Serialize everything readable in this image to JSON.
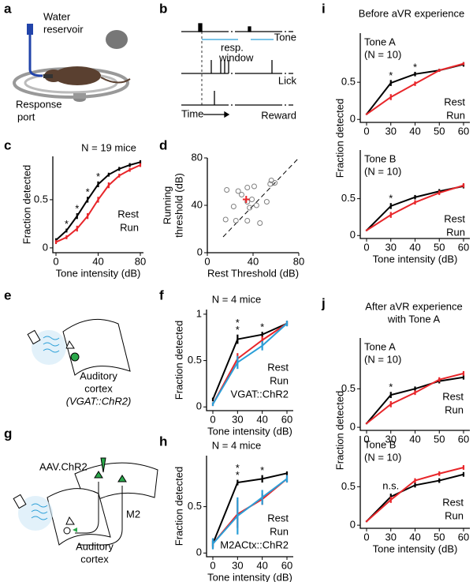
{
  "figure": {
    "panel_labels": [
      "a",
      "b",
      "c",
      "d",
      "e",
      "f",
      "g",
      "h",
      "i",
      "j"
    ],
    "a": {
      "reservoir": [
        "Water",
        "reservoir"
      ],
      "port": [
        "Response",
        "port"
      ]
    },
    "b": {
      "rows": [
        "Tone",
        "Lick",
        "Reward"
      ],
      "window": [
        "resp.",
        "window"
      ],
      "time": "Time"
    },
    "e": {
      "area": [
        "Auditory",
        "cortex"
      ],
      "construct": "(VGAT::ChR2)"
    },
    "g": {
      "virus": "AAV.ChR2",
      "target": "M2",
      "area": [
        "Auditory",
        "cortex"
      ]
    }
  },
  "chart_data": [
    {
      "type": "line",
      "title": "N = 19 mice",
      "xlabel": "Tone intensity (dB)",
      "ylabel": "Fraction detected",
      "x": [
        0,
        10,
        20,
        30,
        40,
        50,
        60,
        70,
        80
      ],
      "xlim": [
        -3,
        83
      ],
      "xticks": [
        0,
        40,
        80
      ],
      "ylim": [
        -0.05,
        0.95
      ],
      "yticks": [
        0,
        0.5
      ],
      "series": [
        {
          "name": "Rest",
          "color": "#000000",
          "values": [
            0.08,
            0.18,
            0.33,
            0.5,
            0.66,
            0.76,
            0.82,
            0.86,
            0.89
          ],
          "errors": [
            0.02,
            0.02,
            0.03,
            0.03,
            0.03,
            0.02,
            0.02,
            0.02,
            0.02
          ]
        },
        {
          "name": "Run",
          "color": "#e8262a",
          "values": [
            0.06,
            0.11,
            0.2,
            0.33,
            0.5,
            0.65,
            0.75,
            0.81,
            0.86
          ],
          "errors": [
            0.02,
            0.02,
            0.03,
            0.03,
            0.03,
            0.03,
            0.02,
            0.02,
            0.02
          ]
        }
      ],
      "annotations": [
        {
          "text": "*",
          "at": 1,
          "color": "#e8262a"
        },
        {
          "text": "*",
          "at": 2,
          "color": "#e8262a"
        },
        {
          "text": "*",
          "at": 3,
          "color": "#e8262a"
        },
        {
          "text": "*",
          "at": 4,
          "color": "#e8262a"
        }
      ]
    },
    {
      "type": "scatter",
      "xlabel": "Rest Threshold (dB)",
      "ylabel": [
        "Running",
        "threshold (dB)"
      ],
      "x": [
        17,
        27,
        30,
        35,
        41,
        23,
        35,
        37,
        39,
        43,
        52,
        55,
        56,
        16,
        25,
        35,
        46,
        59
      ],
      "y": [
        53,
        52,
        49,
        55,
        56,
        39,
        43,
        38,
        45,
        40,
        43,
        58,
        61,
        28,
        27,
        27,
        25,
        59
      ],
      "color": "#808080",
      "mean": {
        "x": 34,
        "y": 45,
        "xerr": 3,
        "yerr": 3,
        "color": "#e8262a"
      },
      "xlim": [
        0,
        80
      ],
      "ylim": [
        0,
        80
      ],
      "xticks": [
        0,
        40,
        80
      ],
      "yticks": [
        0,
        40,
        80
      ]
    },
    {
      "type": "line",
      "title": "N = 4 mice",
      "xlabel": "Tone intensity (dB)",
      "ylabel": "Fraction detected",
      "categories": [
        "0",
        "30",
        "40",
        "60"
      ],
      "ylim": [
        -0.04,
        1.05
      ],
      "yticks": [
        0,
        0.5,
        1
      ],
      "series": [
        {
          "name": "Rest",
          "color": "#000000",
          "values": [
            0.08,
            0.73,
            0.78,
            0.9
          ],
          "errors": [
            0.02,
            0.05,
            0.03,
            0.02
          ]
        },
        {
          "name": "Run",
          "color": "#e8262a",
          "values": [
            0.03,
            0.52,
            0.72,
            0.9
          ],
          "errors": [
            0.02,
            0.06,
            0.04,
            0.03
          ]
        },
        {
          "name": "VGAT::ChR2",
          "color": "#2b9fd8",
          "values": [
            0.03,
            0.48,
            0.66,
            0.9
          ],
          "errors": [
            0.02,
            0.07,
            0.05,
            0.03
          ]
        }
      ],
      "annotations": [
        {
          "text": "*",
          "at": 1,
          "color": "#e8262a"
        },
        {
          "text": "*",
          "at": 1,
          "color": "#2b9fd8"
        },
        {
          "text": "*",
          "at": 2,
          "color": "#2b9fd8"
        }
      ]
    },
    {
      "type": "line",
      "title": "N = 4 mice",
      "xlabel": "Tone intensity (dB)",
      "ylabel": "Fraction detected",
      "categories": [
        "0",
        "30",
        "40",
        "60"
      ],
      "ylim": [
        -0.04,
        1.05
      ],
      "yticks": [
        0,
        0.5
      ],
      "series": [
        {
          "name": "Rest",
          "color": "#000000",
          "values": [
            0.1,
            0.76,
            0.8,
            0.86
          ],
          "errors": [
            0.03,
            0.03,
            0.04,
            0.02
          ]
        },
        {
          "name": "Run",
          "color": "#e8262a",
          "values": [
            0.1,
            0.42,
            0.58,
            0.8
          ],
          "errors": [
            0.05,
            0.15,
            0.06,
            0.04
          ]
        },
        {
          "name": "M2ACtx::ChR2",
          "color": "#2b9fd8",
          "values": [
            0.1,
            0.4,
            0.6,
            0.8
          ],
          "errors": [
            0.06,
            0.2,
            0.08,
            0.04
          ]
        }
      ],
      "annotations": [
        {
          "text": "*",
          "at": 1,
          "color": "#e8262a"
        },
        {
          "text": "*",
          "at": 1,
          "color": "#2b9fd8"
        },
        {
          "text": "*",
          "at": 2,
          "color": "#2b9fd8"
        }
      ]
    },
    {
      "type": "line",
      "title": "Before aVR experience",
      "subtitle": [
        "Tone A",
        "(N = 10)"
      ],
      "ylabel": "Fraction detected",
      "categories": [
        "0",
        "30",
        "40",
        "50",
        "60"
      ],
      "ylim": [
        -0.04,
        1.16
      ],
      "yticks": [
        0,
        0.5
      ],
      "series": [
        {
          "name": "Rest",
          "color": "#000000",
          "values": [
            0.07,
            0.49,
            0.61,
            0.66,
            0.74
          ],
          "errors": [
            0.01,
            0.04,
            0.03,
            0.02,
            0.03
          ]
        },
        {
          "name": "Run",
          "color": "#e8262a",
          "values": [
            0.07,
            0.3,
            0.48,
            0.66,
            0.75
          ],
          "errors": [
            0.01,
            0.04,
            0.03,
            0.02,
            0.02
          ]
        }
      ],
      "annotations": [
        {
          "text": "*",
          "at": 1,
          "color": "#e8262a"
        },
        {
          "text": "*",
          "at": 2,
          "color": "#e8262a"
        }
      ]
    },
    {
      "type": "line",
      "subtitle": [
        "Tone B",
        "(N = 10)"
      ],
      "xlabel": "Tone intensity (dB)",
      "categories": [
        "0",
        "30",
        "40",
        "50",
        "60"
      ],
      "ylim": [
        -0.04,
        1.16
      ],
      "yticks": [
        0,
        0.5
      ],
      "series": [
        {
          "name": "Rest",
          "color": "#000000",
          "values": [
            0.07,
            0.4,
            0.52,
            0.6,
            0.67
          ],
          "errors": [
            0.01,
            0.04,
            0.03,
            0.03,
            0.03
          ]
        },
        {
          "name": "Run",
          "color": "#e8262a",
          "values": [
            0.07,
            0.28,
            0.45,
            0.58,
            0.68
          ],
          "errors": [
            0.01,
            0.04,
            0.03,
            0.03,
            0.03
          ]
        }
      ],
      "annotations": [
        {
          "text": "*",
          "at": 1,
          "color": "#e8262a"
        }
      ]
    },
    {
      "type": "line",
      "title": [
        "After aVR experience",
        "with Tone A"
      ],
      "subtitle": [
        "Tone A",
        "(N = 10)"
      ],
      "ylabel": "Fraction detected",
      "categories": [
        "0",
        "30",
        "40",
        "50",
        "60"
      ],
      "ylim": [
        -0.04,
        1.16
      ],
      "yticks": [
        0,
        0.5
      ],
      "series": [
        {
          "name": "Rest",
          "color": "#000000",
          "values": [
            0.05,
            0.42,
            0.5,
            0.6,
            0.65
          ],
          "errors": [
            0.01,
            0.04,
            0.03,
            0.03,
            0.03
          ]
        },
        {
          "name": "Run",
          "color": "#e8262a",
          "values": [
            0.05,
            0.3,
            0.45,
            0.62,
            0.7
          ],
          "errors": [
            0.01,
            0.04,
            0.03,
            0.03,
            0.03
          ]
        }
      ],
      "annotations": [
        {
          "text": "*",
          "at": 1,
          "color": "#e8262a"
        }
      ]
    },
    {
      "type": "line",
      "subtitle": [
        "Tone B",
        "(N = 10)"
      ],
      "xlabel": "Tone intensity (dB)",
      "categories": [
        "0",
        "30",
        "40",
        "50",
        "60"
      ],
      "ylim": [
        -0.04,
        1.16
      ],
      "yticks": [
        0,
        0.5
      ],
      "series": [
        {
          "name": "Rest",
          "color": "#000000",
          "values": [
            0.05,
            0.37,
            0.52,
            0.58,
            0.66
          ],
          "errors": [
            0.01,
            0.04,
            0.03,
            0.03,
            0.03
          ]
        },
        {
          "name": "Run",
          "color": "#e8262a",
          "values": [
            0.05,
            0.33,
            0.58,
            0.67,
            0.75
          ],
          "errors": [
            0.01,
            0.04,
            0.03,
            0.03,
            0.03
          ]
        }
      ],
      "annotations": [
        {
          "text": "n.s.",
          "at": 1,
          "color": "#e8262a"
        }
      ]
    }
  ]
}
